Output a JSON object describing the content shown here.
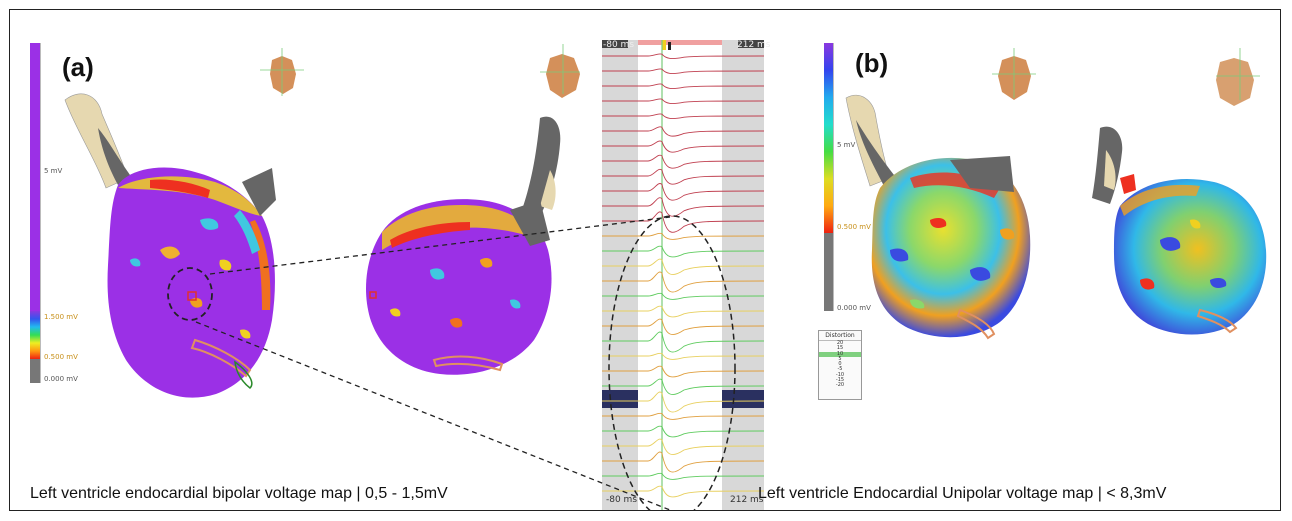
{
  "panels": [
    {
      "label": "(a)",
      "caption": "Left ventricle endocardial bipolar voltage map | 0,5 - 1,5mV",
      "scale": {
        "top": "5 mV",
        "upper": "1.500 mV",
        "lower": "0.500 mV",
        "min": "0.000 mV",
        "bar_color": "#9b30e6"
      }
    },
    {
      "label": "(b)",
      "caption": "Left ventricle Endocardial Unipolar voltage map | < 8,3mV",
      "scale": {
        "top": "5 mV",
        "threshold": "0.500 mV",
        "min": "0.000 mV"
      },
      "distortion": {
        "title": "Distortion",
        "values": [
          "20",
          "15",
          "10",
          "5",
          "0",
          "-5",
          "-10",
          "-15",
          "-20"
        ]
      }
    }
  ],
  "electrograms": {
    "start_top": "-80 ms",
    "end_top": "212 ms",
    "start_bottom": "-80 ms",
    "end_bottom": "212 ms"
  },
  "colors": {
    "purple": "#9b30e6",
    "tissue": "#e6d8b0",
    "scar": "#777777"
  }
}
